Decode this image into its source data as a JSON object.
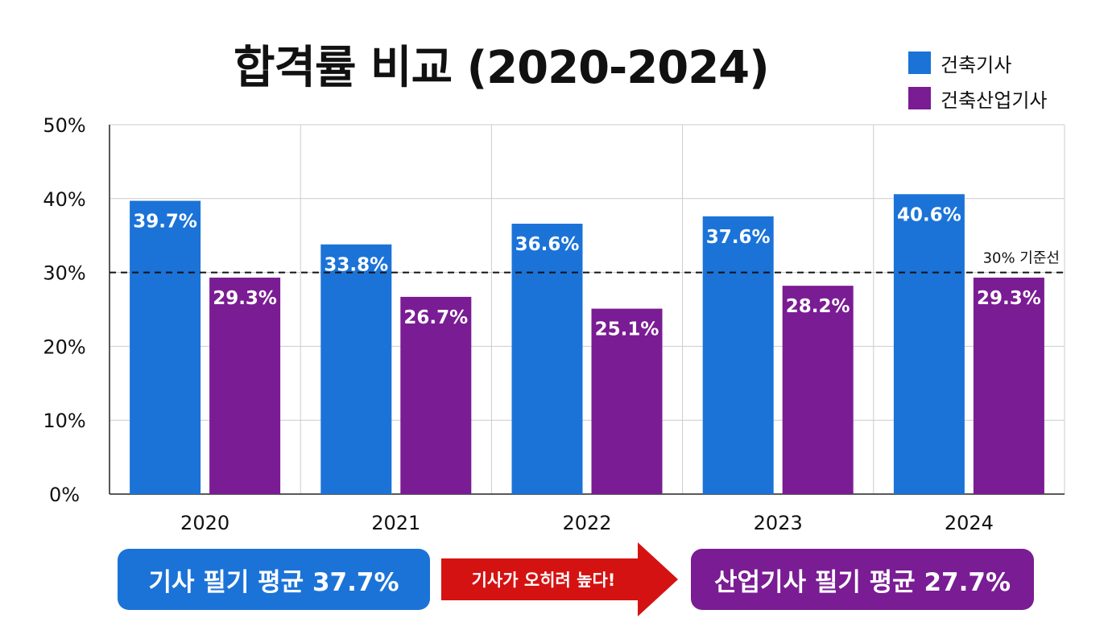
{
  "colors": {
    "blue": "#1b73d8",
    "purple": "#7a1c93",
    "arrow": "#d51212",
    "grid": "#cccccc",
    "axis": "#222222"
  },
  "chart_data": {
    "type": "bar",
    "title": "합격률 비교 (2020-2024)",
    "categories": [
      "2020",
      "2021",
      "2022",
      "2023",
      "2024"
    ],
    "series": [
      {
        "name": "건축기사",
        "color": "#1b73d8",
        "values": [
          39.7,
          33.8,
          36.6,
          37.6,
          40.6
        ],
        "labels": [
          "39.7%",
          "33.8%",
          "36.6%",
          "37.6%",
          "40.6%"
        ]
      },
      {
        "name": "건축산업기사",
        "color": "#7a1c93",
        "values": [
          29.3,
          26.7,
          25.1,
          28.2,
          29.3
        ],
        "labels": [
          "29.3%",
          "26.7%",
          "25.1%",
          "28.2%",
          "29.3%"
        ]
      }
    ],
    "ylim": [
      0,
      50
    ],
    "yticks": [
      0,
      10,
      20,
      30,
      40,
      50
    ],
    "ytick_labels": [
      "0%",
      "10%",
      "20%",
      "30%",
      "40%",
      "50%"
    ],
    "grid": true,
    "legend_position": "top-right",
    "reference_line": {
      "value": 30,
      "label": "30% 기준선",
      "style": "dashed"
    }
  },
  "summary": {
    "left_box": "기사 필기 평균 37.7%",
    "arrow_text": "기사가 오히려 높다!",
    "right_box": "산업기사 필기 평균 27.7%"
  }
}
